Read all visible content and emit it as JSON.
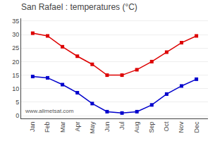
{
  "chart_data": {
    "type": "line",
    "title": "San Rafael : temperatures (°C)",
    "categories": [
      "Jan",
      "Feb",
      "Mar",
      "Apr",
      "May",
      "Jun",
      "Jul",
      "Aug",
      "Sep",
      "Oct",
      "Nov",
      "Dec"
    ],
    "series": [
      {
        "color": "#dd0000",
        "values": [
          30.5,
          29.5,
          25.5,
          22.0,
          19.0,
          15.0,
          15.0,
          17.0,
          20.0,
          23.5,
          27.0,
          29.5
        ]
      },
      {
        "color": "#0000cc",
        "values": [
          14.5,
          14.0,
          11.5,
          8.5,
          4.5,
          1.5,
          1.0,
          1.5,
          4.0,
          8.0,
          11.0,
          13.5
        ]
      }
    ],
    "ylim": [
      -1,
      36
    ],
    "yticks": [
      0,
      5,
      10,
      15,
      20,
      25,
      30,
      35
    ],
    "grid": true,
    "marker": "square",
    "annotations": [
      "www.allmetsat.com"
    ]
  }
}
